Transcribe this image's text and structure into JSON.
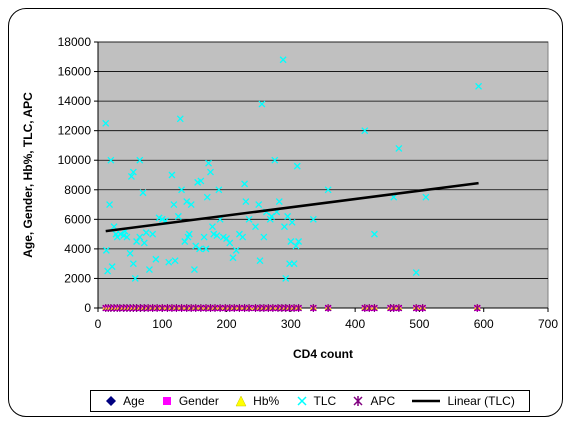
{
  "chart_data": {
    "type": "scatter",
    "xlabel": "CD4 count",
    "ylabel": "Age, Gender, Hb%, TLC, APC",
    "xlim": [
      0,
      700
    ],
    "ylim": [
      0,
      18000
    ],
    "xticks": [
      0,
      100,
      200,
      300,
      400,
      500,
      600,
      700
    ],
    "yticks": [
      0,
      2000,
      4000,
      6000,
      8000,
      10000,
      12000,
      14000,
      16000,
      18000
    ],
    "plot_background": "#c0c0c0",
    "grid": "horizontal",
    "legend_position": "bottom",
    "series": [
      {
        "name": "Age",
        "marker": "diamond",
        "color": "#000080"
      },
      {
        "name": "Gender",
        "marker": "square",
        "color": "#ff00ff"
      },
      {
        "name": "Hb%",
        "marker": "triangle",
        "color": "#ffff00"
      },
      {
        "name": "TLC",
        "marker": "x",
        "color": "#00ffff"
      },
      {
        "name": "APC",
        "marker": "star",
        "color": "#800080"
      },
      {
        "name": "Linear (TLC)",
        "marker": "line",
        "color": "#000000"
      }
    ],
    "low_series_x": [
      12,
      16,
      20,
      25,
      30,
      34,
      40,
      45,
      50,
      55,
      60,
      66,
      72,
      78,
      85,
      92,
      100,
      108,
      115,
      122,
      130,
      138,
      145,
      152,
      160,
      168,
      175,
      182,
      190,
      198,
      205,
      212,
      220,
      228,
      235,
      245,
      252,
      258,
      265,
      272,
      280,
      286,
      292,
      298,
      305,
      312,
      335,
      358,
      415,
      422,
      430,
      455,
      460,
      468,
      495,
      505,
      590
    ],
    "tlc_points": [
      [
        12,
        12500
      ],
      [
        13,
        3900
      ],
      [
        15,
        2500
      ],
      [
        18,
        7000
      ],
      [
        20,
        10000
      ],
      [
        22,
        2800
      ],
      [
        25,
        5500
      ],
      [
        28,
        5000
      ],
      [
        30,
        4800
      ],
      [
        35,
        5000
      ],
      [
        40,
        4900
      ],
      [
        42,
        5200
      ],
      [
        45,
        4800
      ],
      [
        50,
        3700
      ],
      [
        52,
        8900
      ],
      [
        55,
        9200
      ],
      [
        55,
        3000
      ],
      [
        58,
        2000
      ],
      [
        60,
        4500
      ],
      [
        65,
        10000
      ],
      [
        65,
        4800
      ],
      [
        70,
        7800
      ],
      [
        72,
        4400
      ],
      [
        75,
        5100
      ],
      [
        80,
        2600
      ],
      [
        85,
        5000
      ],
      [
        90,
        3300
      ],
      [
        95,
        6100
      ],
      [
        100,
        6000
      ],
      [
        105,
        5900
      ],
      [
        110,
        3100
      ],
      [
        115,
        9000
      ],
      [
        118,
        7000
      ],
      [
        120,
        3200
      ],
      [
        125,
        6200
      ],
      [
        128,
        12800
      ],
      [
        130,
        8000
      ],
      [
        135,
        4500
      ],
      [
        138,
        7200
      ],
      [
        140,
        4800
      ],
      [
        142,
        5000
      ],
      [
        145,
        7000
      ],
      [
        150,
        2600
      ],
      [
        152,
        4200
      ],
      [
        155,
        8500
      ],
      [
        158,
        4000
      ],
      [
        160,
        8600
      ],
      [
        165,
        4800
      ],
      [
        168,
        4000
      ],
      [
        170,
        7500
      ],
      [
        172,
        9800
      ],
      [
        175,
        9200
      ],
      [
        178,
        5500
      ],
      [
        180,
        5000
      ],
      [
        185,
        4900
      ],
      [
        188,
        8000
      ],
      [
        190,
        6000
      ],
      [
        195,
        4800
      ],
      [
        200,
        4700
      ],
      [
        205,
        4400
      ],
      [
        210,
        3400
      ],
      [
        215,
        3900
      ],
      [
        220,
        5000
      ],
      [
        225,
        4800
      ],
      [
        228,
        8400
      ],
      [
        230,
        7200
      ],
      [
        235,
        6000
      ],
      [
        245,
        5500
      ],
      [
        250,
        7000
      ],
      [
        252,
        3200
      ],
      [
        255,
        13800
      ],
      [
        258,
        4800
      ],
      [
        262,
        6500
      ],
      [
        268,
        6000
      ],
      [
        270,
        6200
      ],
      [
        275,
        10000
      ],
      [
        278,
        6500
      ],
      [
        282,
        7200
      ],
      [
        288,
        16800
      ],
      [
        290,
        5500
      ],
      [
        292,
        2000
      ],
      [
        295,
        6200
      ],
      [
        298,
        3000
      ],
      [
        300,
        4500
      ],
      [
        302,
        5800
      ],
      [
        305,
        3000
      ],
      [
        308,
        4200
      ],
      [
        310,
        9600
      ],
      [
        312,
        4500
      ],
      [
        335,
        6000
      ],
      [
        358,
        8000
      ],
      [
        415,
        12000
      ],
      [
        430,
        5000
      ],
      [
        468,
        10800
      ],
      [
        460,
        7500
      ],
      [
        495,
        2400
      ],
      [
        510,
        7500
      ],
      [
        592,
        15000
      ]
    ],
    "trendline": {
      "x": [
        12,
        592
      ],
      "y": [
        5200,
        8450
      ]
    }
  },
  "legend": {
    "age": "Age",
    "gender": "Gender",
    "hb": "Hb%",
    "tlc": "TLC",
    "apc": "APC",
    "linear": "Linear (TLC)"
  }
}
